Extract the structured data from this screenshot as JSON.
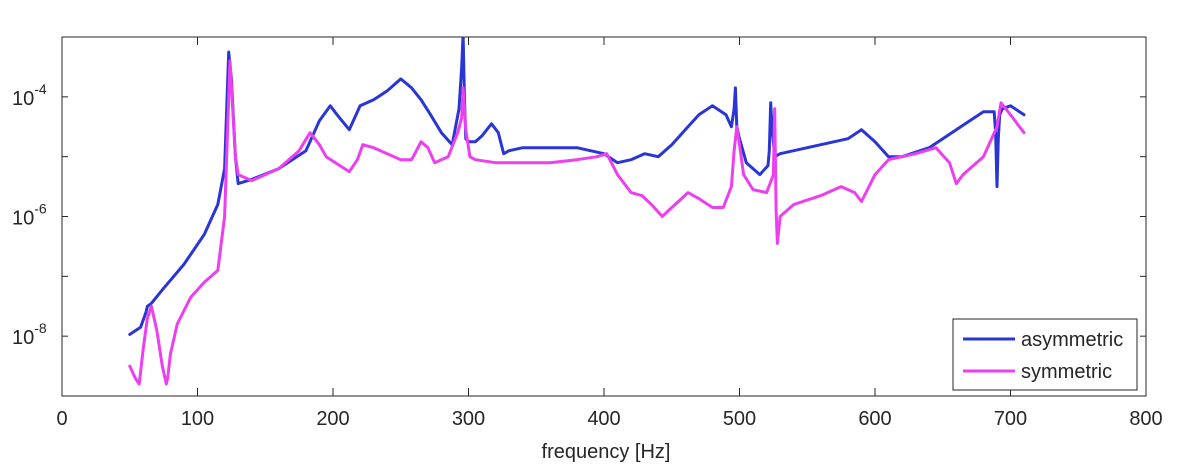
{
  "chart_data": {
    "type": "line",
    "title": "",
    "xlabel": "frequency [Hz]",
    "ylabel": "",
    "xlim": [
      0,
      800
    ],
    "ylim_log10": [
      -9,
      -3
    ],
    "yscale": "log",
    "grid": false,
    "legend_position": "bottom-right",
    "x_ticks": [
      {
        "value": 0,
        "label": "0"
      },
      {
        "value": 100,
        "label": "100"
      },
      {
        "value": 200,
        "label": "200"
      },
      {
        "value": 300,
        "label": "300"
      },
      {
        "value": 400,
        "label": "400"
      },
      {
        "value": 500,
        "label": "500"
      },
      {
        "value": 600,
        "label": "600"
      },
      {
        "value": 700,
        "label": "700"
      },
      {
        "value": 800,
        "label": "800"
      }
    ],
    "y_ticks": [
      {
        "exp": -4,
        "base": "10",
        "sup": "-4"
      },
      {
        "exp": -6,
        "base": "10",
        "sup": "-6"
      },
      {
        "exp": -8,
        "base": "10",
        "sup": "-8"
      }
    ],
    "series": [
      {
        "name": "asymmetric",
        "color": "#2a35d6",
        "x": [
          50,
          58,
          62,
          63,
          66,
          75,
          90,
          105,
          115,
          120,
          123,
          125,
          128,
          130,
          140,
          160,
          180,
          190,
          198,
          203,
          212,
          220,
          230,
          240,
          250,
          258,
          265,
          272,
          280,
          288,
          293,
          295,
          296,
          297,
          298,
          300,
          305,
          310,
          317,
          322,
          326,
          330,
          340,
          360,
          380,
          390,
          400,
          410,
          420,
          430,
          440,
          450,
          460,
          470,
          480,
          490,
          494,
          496,
          497,
          498,
          500,
          505,
          515,
          521,
          522,
          523,
          524,
          526,
          530,
          540,
          560,
          580,
          590,
          600,
          610,
          620,
          640,
          660,
          680,
          688,
          689,
          690,
          691,
          692,
          694,
          700,
          710
        ],
        "y_log10": [
          -7.97,
          -7.85,
          -7.6,
          -7.5,
          -7.45,
          -7.2,
          -6.8,
          -6.3,
          -5.8,
          -5.2,
          -3.25,
          -3.7,
          -5.0,
          -5.45,
          -5.38,
          -5.2,
          -4.9,
          -4.4,
          -4.15,
          -4.3,
          -4.55,
          -4.15,
          -4.05,
          -3.9,
          -3.7,
          -3.85,
          -4.05,
          -4.3,
          -4.6,
          -4.8,
          -4.2,
          -3.5,
          -2.95,
          -4.0,
          -4.7,
          -4.75,
          -4.75,
          -4.65,
          -4.45,
          -4.6,
          -4.95,
          -4.9,
          -4.85,
          -4.85,
          -4.85,
          -4.9,
          -4.95,
          -5.1,
          -5.05,
          -4.95,
          -5.0,
          -4.8,
          -4.55,
          -4.3,
          -4.15,
          -4.3,
          -4.5,
          -4.2,
          -3.85,
          -4.5,
          -4.7,
          -5.1,
          -5.3,
          -5.15,
          -4.9,
          -4.1,
          -4.5,
          -5.0,
          -4.95,
          -4.9,
          -4.8,
          -4.7,
          -4.55,
          -4.75,
          -5.0,
          -5.0,
          -4.85,
          -4.55,
          -4.25,
          -4.25,
          -4.6,
          -5.5,
          -4.7,
          -4.3,
          -4.2,
          -4.15,
          -4.3
        ]
      },
      {
        "name": "symmetric",
        "color": "#ec3ff0",
        "x": [
          50,
          54,
          57,
          60,
          63,
          66,
          70,
          74,
          77,
          78,
          80,
          85,
          95,
          105,
          115,
          120,
          124,
          126,
          128,
          130,
          140,
          160,
          175,
          183,
          190,
          195,
          205,
          212,
          218,
          222,
          230,
          240,
          250,
          258,
          265,
          270,
          275,
          285,
          292,
          295,
          296,
          298,
          301,
          305,
          320,
          340,
          360,
          380,
          395,
          402,
          410,
          420,
          428,
          435,
          443,
          450,
          462,
          470,
          480,
          488,
          494,
          496,
          498,
          500,
          503,
          510,
          520,
          525,
          526,
          527,
          528,
          530,
          540,
          560,
          575,
          585,
          590,
          600,
          610,
          630,
          645,
          655,
          660,
          665,
          670,
          680,
          690,
          693,
          700,
          710
        ],
        "y_log10": [
          -8.5,
          -8.7,
          -8.8,
          -8.2,
          -7.7,
          -7.5,
          -7.9,
          -8.5,
          -8.8,
          -8.7,
          -8.3,
          -7.8,
          -7.35,
          -7.1,
          -6.9,
          -6.0,
          -3.4,
          -4.2,
          -5.0,
          -5.3,
          -5.4,
          -5.2,
          -4.9,
          -4.6,
          -4.8,
          -5.0,
          -5.15,
          -5.25,
          -5.05,
          -4.8,
          -4.85,
          -4.95,
          -5.05,
          -5.05,
          -4.75,
          -4.85,
          -5.1,
          -5.0,
          -4.6,
          -4.35,
          -3.85,
          -4.55,
          -5.0,
          -5.05,
          -5.1,
          -5.1,
          -5.1,
          -5.05,
          -5.0,
          -4.95,
          -5.3,
          -5.6,
          -5.65,
          -5.8,
          -6.0,
          -5.85,
          -5.6,
          -5.7,
          -5.85,
          -5.85,
          -5.5,
          -4.9,
          -4.5,
          -4.8,
          -5.3,
          -5.55,
          -5.6,
          -5.3,
          -4.2,
          -5.9,
          -6.45,
          -6.0,
          -5.8,
          -5.65,
          -5.5,
          -5.6,
          -5.75,
          -5.3,
          -5.05,
          -4.95,
          -4.85,
          -5.1,
          -5.45,
          -5.3,
          -5.2,
          -5.0,
          -4.5,
          -4.1,
          -4.3,
          -4.6
        ]
      }
    ]
  }
}
